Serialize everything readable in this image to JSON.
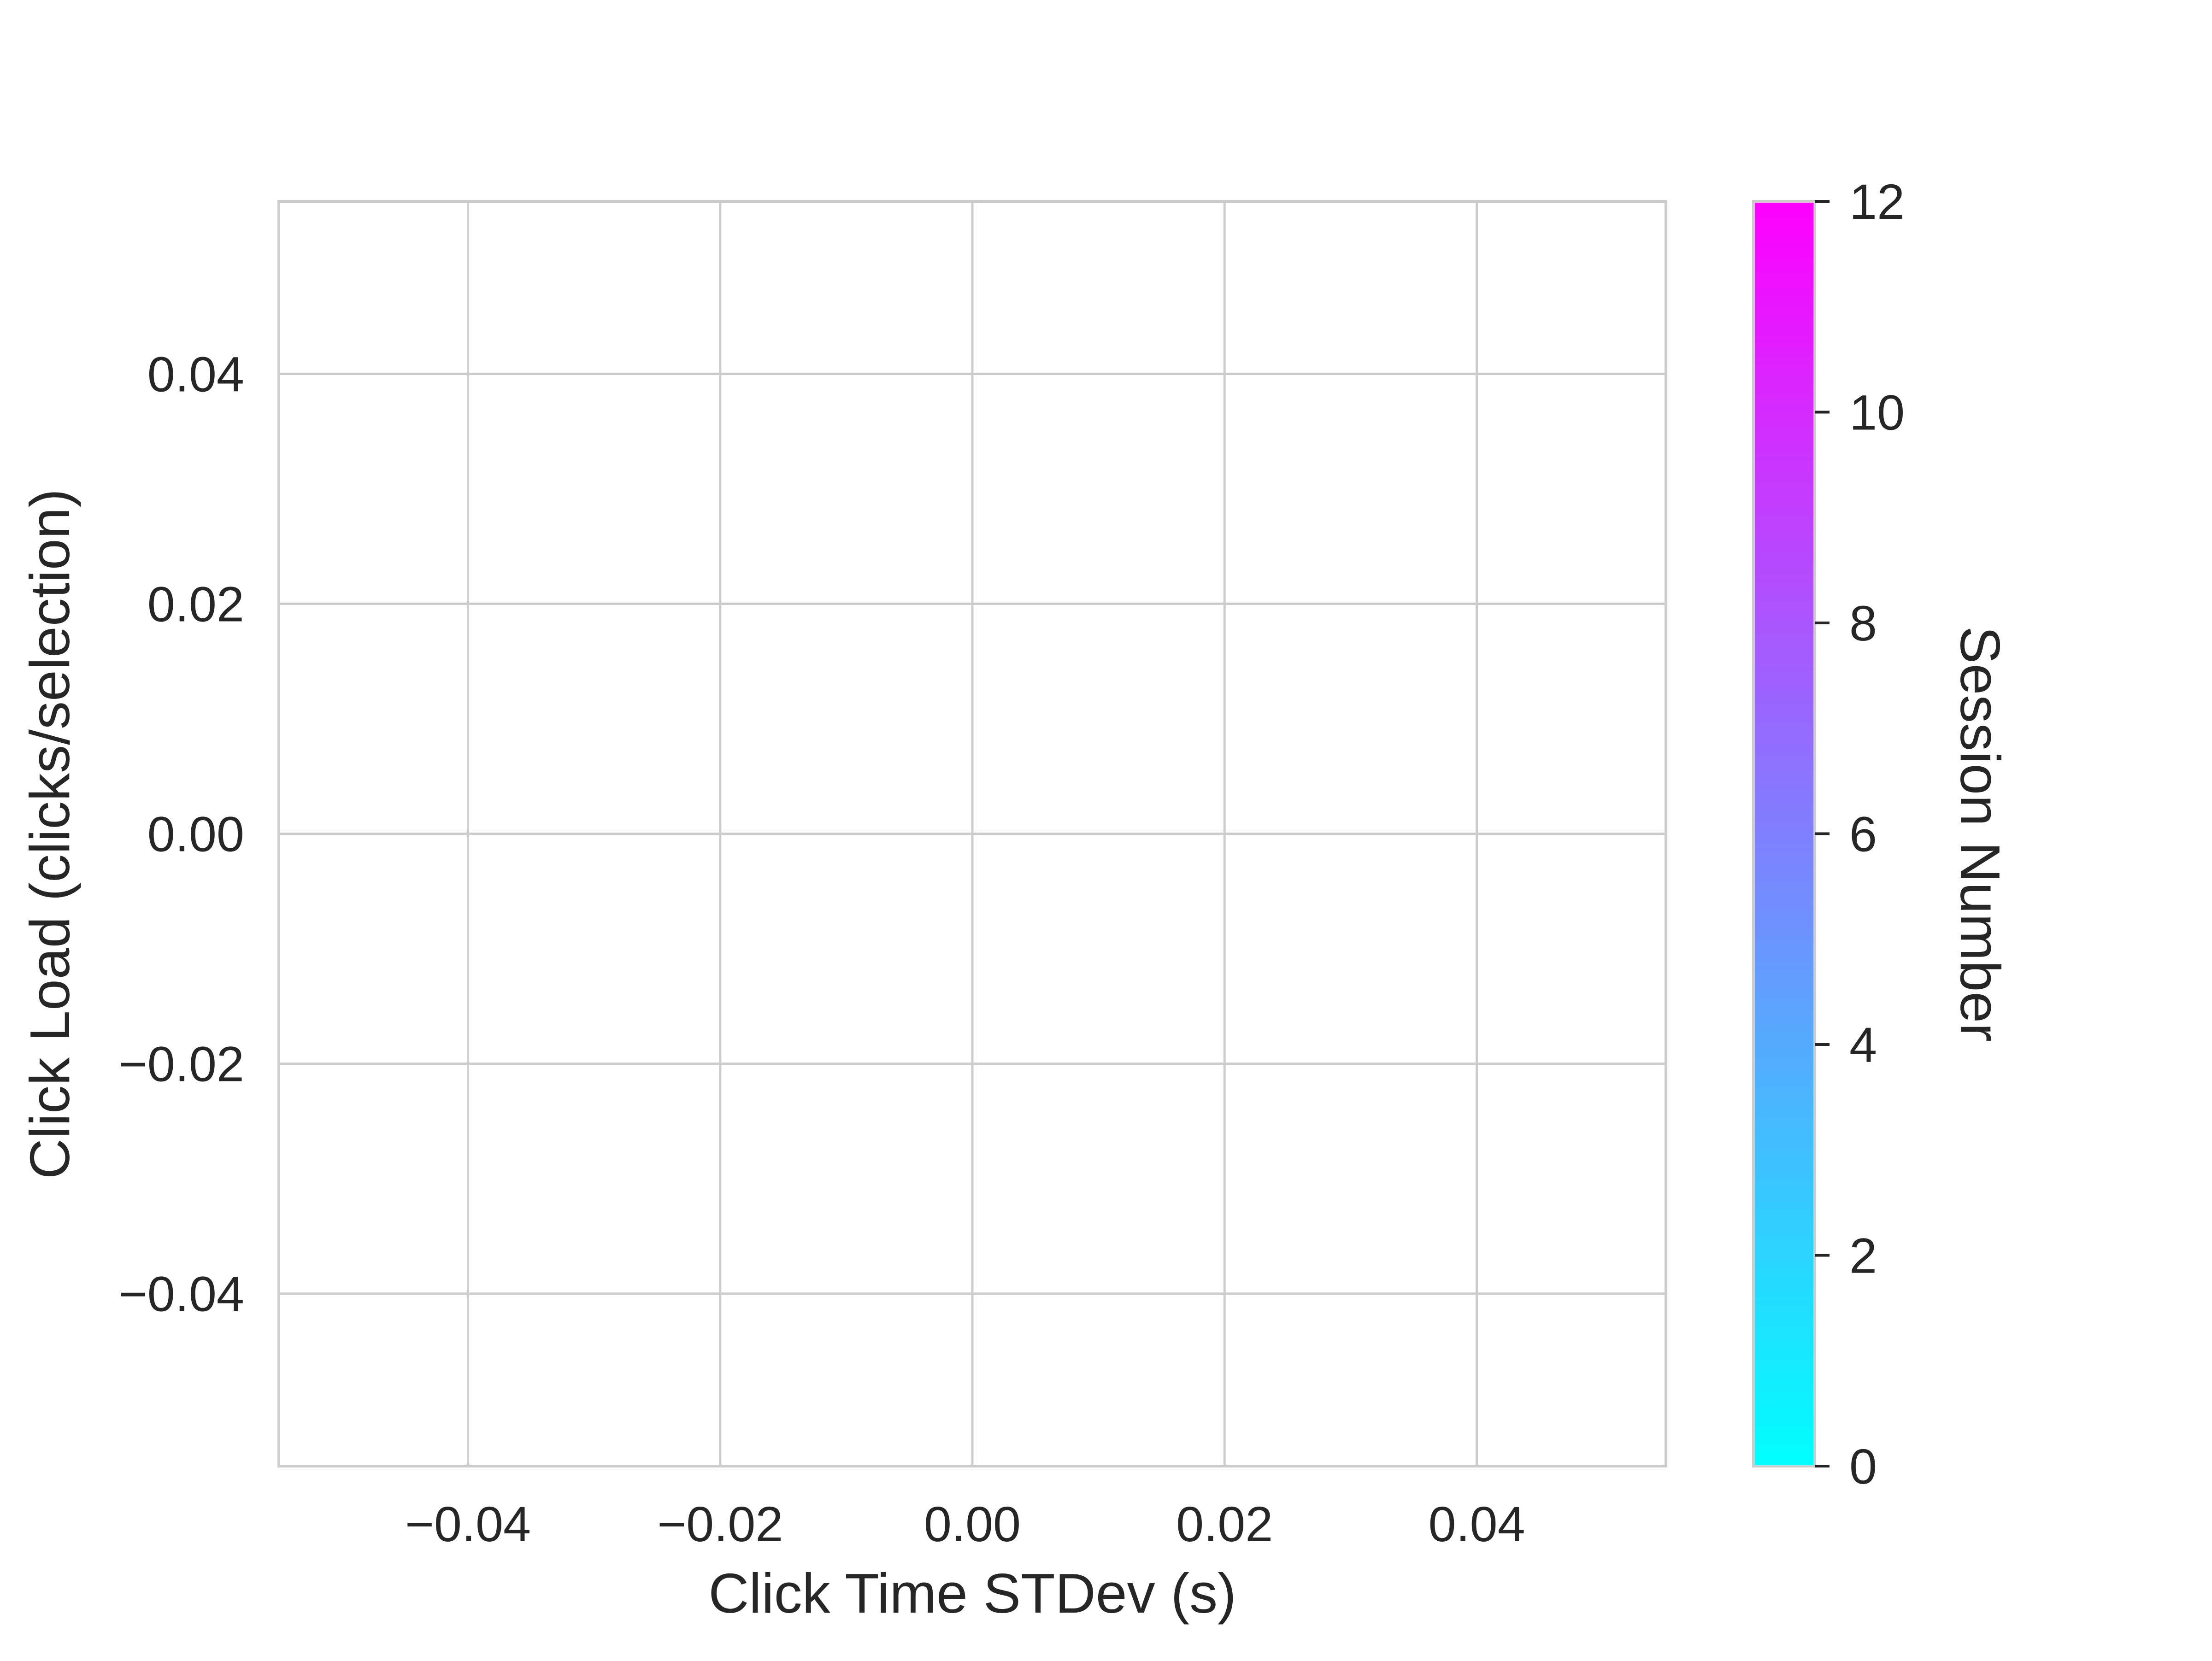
{
  "chart_data": {
    "type": "scatter",
    "title": "",
    "xlabel": "Click Time STDev (s)",
    "ylabel": "Click Load (clicks/selection)",
    "xlim": [
      -0.055,
      0.055
    ],
    "ylim": [
      -0.055,
      0.055
    ],
    "x_ticks": [
      -0.04,
      -0.02,
      0.0,
      0.02,
      0.04
    ],
    "x_tick_labels": [
      "−0.04",
      "−0.02",
      "0.00",
      "0.02",
      "0.04"
    ],
    "y_ticks": [
      0.04,
      0.02,
      0.0,
      -0.02,
      -0.04
    ],
    "y_tick_labels": [
      "0.04",
      "0.02",
      "0.00",
      "−0.02",
      "−0.04"
    ],
    "grid": true,
    "series": [],
    "colorbar": {
      "label": "Session Number",
      "range": [
        0,
        12
      ],
      "ticks": [
        0,
        2,
        4,
        6,
        8,
        10,
        12
      ],
      "tick_labels": [
        "0",
        "2",
        "4",
        "6",
        "8",
        "10",
        "12"
      ],
      "colormap": "cool",
      "color_low": "#00ffff",
      "color_high": "#ff00ff"
    },
    "colors": {
      "grid": "#cccccc",
      "frame": "#cccccc",
      "text": "#262626",
      "background": "#ffffff"
    }
  }
}
